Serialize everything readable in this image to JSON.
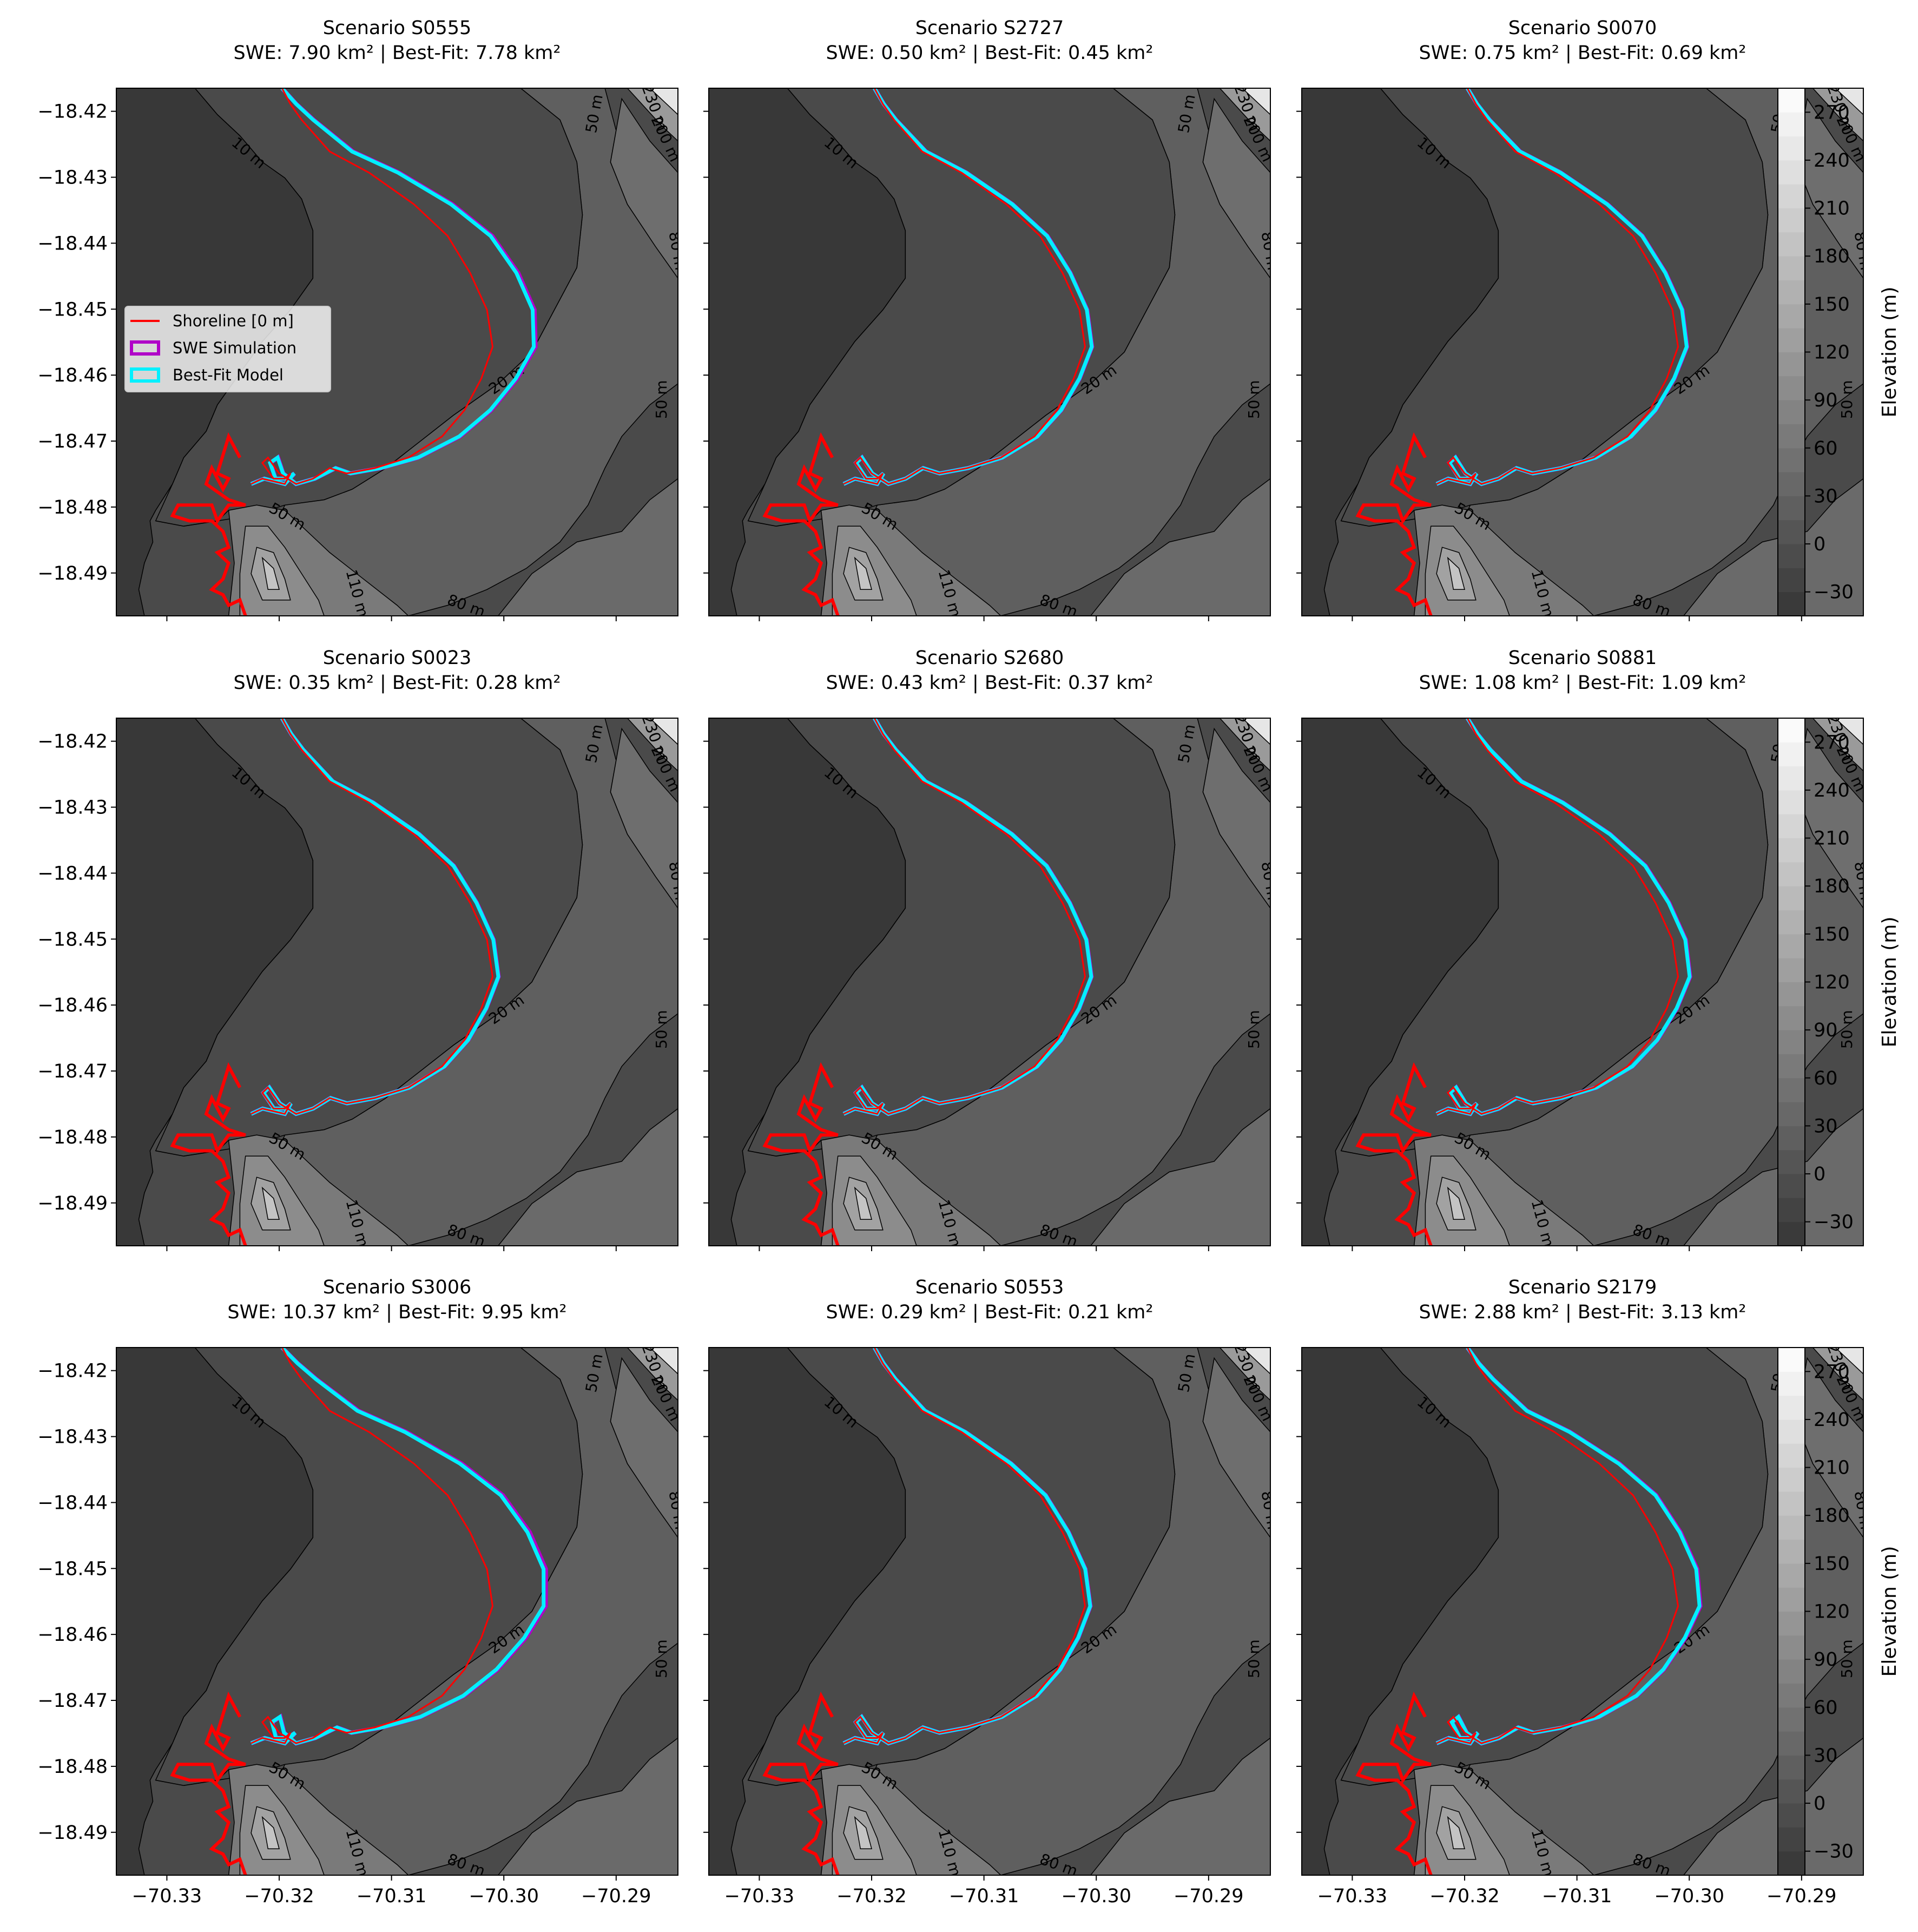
{
  "chart_data": {
    "type": "contour-map-grid",
    "panels": [
      {
        "title": "Scenario S0555",
        "subtitle": "SWE: 7.90 km² | Best-Fit: 7.78 km²",
        "scenario": "S0555",
        "swe_km2": 7.9,
        "bestfit_km2": 7.78,
        "extent": 4
      },
      {
        "title": "Scenario S2727",
        "subtitle": "SWE: 0.50 km² | Best-Fit: 0.45 km²",
        "scenario": "S2727",
        "swe_km2": 0.5,
        "bestfit_km2": 0.45,
        "extent": 0.5
      },
      {
        "title": "Scenario S0070",
        "subtitle": "SWE: 0.75 km² | Best-Fit: 0.69 km²",
        "scenario": "S0070",
        "swe_km2": 0.75,
        "bestfit_km2": 0.69,
        "extent": 0.7
      },
      {
        "title": "Scenario S0023",
        "subtitle": "SWE: 0.35 km² | Best-Fit: 0.28 km²",
        "scenario": "S0023",
        "swe_km2": 0.35,
        "bestfit_km2": 0.28,
        "extent": 0.4
      },
      {
        "title": "Scenario S2680",
        "subtitle": "SWE: 0.43 km² | Best-Fit: 0.37 km²",
        "scenario": "S2680",
        "swe_km2": 0.43,
        "bestfit_km2": 0.37,
        "extent": 0.45
      },
      {
        "title": "Scenario S0881",
        "subtitle": "SWE: 1.08 km² | Best-Fit: 1.09 km²",
        "scenario": "S0881",
        "swe_km2": 1.08,
        "bestfit_km2": 1.09,
        "extent": 1.0
      },
      {
        "title": "Scenario S3006",
        "subtitle": "SWE: 10.37 km² | Best-Fit: 9.95 km²",
        "scenario": "S3006",
        "swe_km2": 10.37,
        "bestfit_km2": 9.95,
        "extent": 5
      },
      {
        "title": "Scenario S0553",
        "subtitle": "SWE: 0.29 km² | Best-Fit: 0.21 km²",
        "scenario": "S0553",
        "swe_km2": 0.29,
        "bestfit_km2": 0.21,
        "extent": 0.35
      },
      {
        "title": "Scenario S2179",
        "subtitle": "SWE: 2.88 km² | Best-Fit: 3.13 km²",
        "scenario": "S2179",
        "swe_km2": 2.88,
        "bestfit_km2": 3.13,
        "extent": 2.0
      }
    ],
    "x_ticks": [
      "−70.33",
      "−70.32",
      "−70.31",
      "−70.30",
      "−70.29"
    ],
    "x_tick_values": [
      -70.33,
      -70.32,
      -70.31,
      -70.3,
      -70.29
    ],
    "y_ticks": [
      "−18.42",
      "−18.43",
      "−18.44",
      "−18.45",
      "−18.46",
      "−18.47",
      "−18.48",
      "−18.49"
    ],
    "y_tick_values": [
      -18.42,
      -18.43,
      -18.44,
      -18.45,
      -18.46,
      -18.47,
      -18.48,
      -18.49
    ],
    "xlim": [
      -70.3345,
      -70.2845
    ],
    "ylim": [
      -18.4965,
      -18.4165
    ],
    "colorbar": {
      "label": "Elevation (m)",
      "ticks": [
        "−30",
        "0",
        "30",
        "60",
        "90",
        "120",
        "150",
        "180",
        "210",
        "240",
        "270"
      ],
      "tick_values": [
        -30,
        0,
        30,
        60,
        90,
        120,
        150,
        180,
        210,
        240,
        270
      ],
      "range": [
        -45,
        285
      ],
      "levels": [
        -45,
        -30,
        -15,
        0,
        15,
        30,
        45,
        60,
        75,
        90,
        105,
        120,
        135,
        150,
        165,
        180,
        195,
        210,
        225,
        240,
        255,
        270,
        285
      ],
      "colormap": "gray"
    },
    "contour_labels": [
      "10 m",
      "20 m",
      "50 m",
      "50 m",
      "80 m",
      "50 m",
      "110 m",
      "80 m",
      "230 m",
      "200 m",
      "140 m",
      "170 m"
    ],
    "legend": {
      "placement": "center-left of first panel",
      "items": [
        {
          "label": "Shoreline [0 m]",
          "color": "#ff0000",
          "kind": "line"
        },
        {
          "label": "SWE Simulation",
          "color": "#b000c8",
          "kind": "patch"
        },
        {
          "label": "Best-Fit Model",
          "color": "#00f0ff",
          "kind": "patch"
        }
      ]
    }
  }
}
